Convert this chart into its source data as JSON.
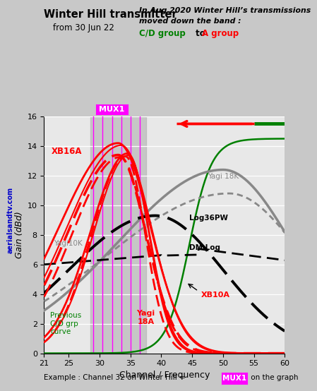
{
  "title_left": "Winter Hill transmitter",
  "subtitle_left": "from 30 Jun 22",
  "title_right_line1": "In Aug 2020 Winter Hill’s transmissions",
  "title_right_line2": "moved down the band :",
  "title_right_cd": "C/D group",
  "title_right_to": " to ",
  "title_right_a": "A group",
  "xlabel": "Channel / Frequency",
  "ylabel": "Gain (dBd)",
  "xlim": [
    21,
    60
  ],
  "ylim": [
    0,
    16
  ],
  "xticks": [
    21,
    25,
    30,
    35,
    40,
    45,
    50,
    55,
    60
  ],
  "yticks": [
    0,
    2,
    4,
    6,
    8,
    10,
    12,
    14,
    16
  ],
  "mux1_lines": [
    29.0,
    30.5,
    32.0,
    33.5,
    35.0,
    36.5
  ],
  "mux1_shade_start": 28.5,
  "mux1_shade_end": 37.5,
  "watermark": "aerialsandtv.com",
  "bottom_note": "Example : Channel 32 on Winter Hill = ",
  "bottom_note2": " on the graph",
  "bg_color": "#c8c8c8",
  "plot_bg_color": "#e8e8e8",
  "grid_color": "#ffffff",
  "red": "#ff0000",
  "green": "#008000",
  "gray": "#888888",
  "black": "#000000",
  "magenta": "#ff00ff",
  "blue": "#0000cc"
}
